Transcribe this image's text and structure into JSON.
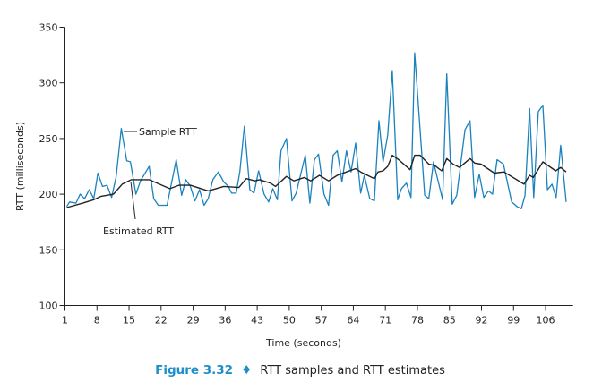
{
  "chart_data": {
    "type": "line",
    "title": "",
    "xlabel": "Time (seconds)",
    "ylabel": "RTT (milliseconds)",
    "xlim": [
      1,
      112
    ],
    "ylim": [
      100,
      350
    ],
    "xticks": [
      1,
      8,
      15,
      22,
      29,
      36,
      43,
      50,
      57,
      64,
      71,
      78,
      85,
      92,
      99,
      106
    ],
    "yticks": [
      100,
      150,
      200,
      250,
      300,
      350
    ],
    "grid": false,
    "colors": {
      "sample": "#1a82bd",
      "estimated": "#222222"
    },
    "annotations": [
      "Sample RTT",
      "Estimated RTT"
    ],
    "series": [
      {
        "name": "Sample RTT",
        "x": [
          1.4,
          2,
          3.4,
          4.3,
          5.3,
          6.3,
          7.3,
          8.2,
          9.2,
          10.2,
          11.2,
          12.2,
          13.3,
          14.5,
          15.3,
          16.5,
          17.5,
          19.4,
          20.4,
          21.4,
          23.3,
          25.3,
          26.5,
          27.4,
          28.4,
          29.4,
          30.4,
          31.4,
          32.3,
          33.3,
          34.5,
          35.7,
          36.7,
          37.4,
          38.4,
          39.2,
          40.2,
          41.4,
          42.3,
          43.3,
          44.5,
          45.5,
          46.4,
          47.4,
          48.2,
          49.4,
          50.6,
          51.5,
          53.5,
          54.5,
          55.5,
          56.4,
          57.6,
          58.6,
          59.6,
          60.5,
          61.5,
          62.5,
          63.5,
          64.5,
          65.6,
          66.4,
          67.6,
          68.6,
          69.6,
          70.5,
          71.5,
          72.5,
          73.7,
          74.5,
          75.6,
          76.6,
          77.4,
          79.6,
          80.5,
          81.5,
          83.5,
          84.4,
          85.6,
          86.6,
          88.4,
          89.5,
          90.5,
          91.5,
          92.5,
          93.5,
          94.4,
          95.4,
          96.8,
          98.6,
          99.7,
          100.7,
          101.5,
          102.5,
          103.4,
          104.4,
          105.4,
          106.4,
          107.4,
          108.3,
          109.3,
          110.5
        ],
        "values": [
          189,
          193,
          192,
          200,
          196,
          204,
          196,
          219,
          207,
          208,
          197,
          216,
          259,
          230,
          229,
          200,
          212,
          225,
          196,
          190,
          190,
          231,
          199,
          213,
          207,
          194,
          204,
          190,
          196,
          213,
          220,
          211,
          207,
          201,
          201,
          220,
          261,
          204,
          201,
          221,
          200,
          193,
          205,
          195,
          239,
          250,
          194,
          201,
          235,
          192,
          231,
          236,
          200,
          190,
          235,
          239,
          211,
          239,
          220,
          246,
          201,
          217,
          196,
          194,
          266,
          229,
          253,
          311,
          195,
          205,
          210,
          197,
          327,
          199,
          196,
          229,
          195,
          308,
          191,
          199,
          258,
          266,
          197,
          218,
          197,
          203,
          200,
          231,
          227,
          193,
          189,
          187,
          199,
          277,
          197,
          274,
          280,
          204,
          209,
          197,
          244,
          193
        ]
      },
      {
        "name": "Estimated RTT",
        "x": [
          1.4,
          4.9,
          7.3,
          8.8,
          11.6,
          13.5,
          15.5,
          19.4,
          23.9,
          25.9,
          28.4,
          32.3,
          35.7,
          39,
          40.6,
          42.5,
          43.5,
          45.9,
          47,
          49.4,
          51,
          53.3,
          54.7,
          56.6,
          58.6,
          60.5,
          62.5,
          64.5,
          65.6,
          68.6,
          69.4,
          70.5,
          71.5,
          72.5,
          73.9,
          76.4,
          77.4,
          78.6,
          80.5,
          81.7,
          83.3,
          84.4,
          85.8,
          87.2,
          89.5,
          90.5,
          91.9,
          94.8,
          96.9,
          101.3,
          102.5,
          103.3,
          105.4,
          108.2,
          109.3,
          110.5
        ],
        "values": [
          188,
          192,
          195,
          198,
          200,
          209,
          213,
          213,
          205,
          208,
          208,
          203,
          207,
          206,
          214,
          212,
          213,
          210,
          207,
          216,
          212,
          215,
          212,
          217,
          212,
          217,
          220,
          223,
          220,
          214,
          220,
          221,
          225,
          235,
          231,
          222,
          235,
          235,
          227,
          226,
          221,
          232,
          227,
          224,
          232,
          228,
          227,
          219,
          220,
          209,
          217,
          215,
          229,
          221,
          224,
          220
        ]
      }
    ]
  },
  "caption": {
    "figure": "Figure 3.32",
    "separator": "♦",
    "text": "RTT samples and RTT estimates"
  }
}
